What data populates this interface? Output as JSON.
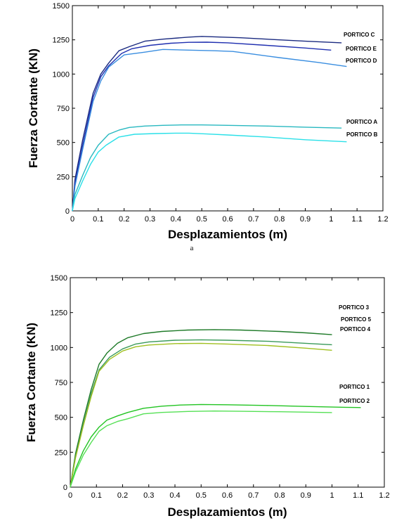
{
  "chart_data": [
    {
      "type": "line",
      "caption": "a",
      "xlabel": "Desplazamientos (m)",
      "ylabel": "Fuerza Cortante (KN)",
      "xlim": [
        0,
        1.2
      ],
      "ylim": [
        0,
        1500
      ],
      "xticks": [
        "0",
        "0.1",
        "0.2",
        "0.3",
        "0.4",
        "0.5",
        "0.6",
        "0.7",
        "0.8",
        "0.9",
        "1",
        "1.1",
        "1.2"
      ],
      "yticks": [
        "0",
        "250",
        "500",
        "750",
        "1000",
        "1250",
        "1500"
      ],
      "grid": false,
      "series": [
        {
          "name": "PORTICO C",
          "color": "#1a2a80",
          "x": [
            0,
            0.01,
            0.04,
            0.08,
            0.11,
            0.14,
            0.18,
            0.22,
            0.28,
            0.35,
            0.45,
            0.5,
            0.55,
            0.65,
            0.8,
            0.9,
            1.04
          ],
          "y": [
            0,
            230,
            520,
            860,
            1000,
            1080,
            1170,
            1200,
            1240,
            1255,
            1270,
            1275,
            1272,
            1265,
            1250,
            1240,
            1228
          ]
        },
        {
          "name": "PORTICO E",
          "color": "#1f2fb0",
          "x": [
            0,
            0.01,
            0.04,
            0.08,
            0.11,
            0.14,
            0.19,
            0.23,
            0.3,
            0.38,
            0.45,
            0.52,
            0.6,
            0.75,
            0.9,
            1.0
          ],
          "y": [
            0,
            200,
            480,
            830,
            980,
            1060,
            1150,
            1185,
            1210,
            1225,
            1232,
            1233,
            1228,
            1210,
            1190,
            1175
          ]
        },
        {
          "name": "PORTICO D",
          "color": "#3a8ee0",
          "x": [
            0,
            0.01,
            0.04,
            0.08,
            0.11,
            0.14,
            0.2,
            0.28,
            0.35,
            0.45,
            0.55,
            0.62,
            0.7,
            0.8,
            0.95,
            1.06
          ],
          "y": [
            0,
            180,
            450,
            800,
            950,
            1050,
            1140,
            1160,
            1180,
            1175,
            1170,
            1165,
            1145,
            1120,
            1085,
            1055
          ]
        },
        {
          "name": "PORTICO A",
          "color": "#28b8c0",
          "x": [
            0,
            0.01,
            0.04,
            0.07,
            0.1,
            0.14,
            0.18,
            0.22,
            0.28,
            0.35,
            0.42,
            0.5,
            0.6,
            0.75,
            0.9,
            1.04
          ],
          "y": [
            0,
            120,
            260,
            390,
            480,
            560,
            590,
            610,
            620,
            625,
            628,
            628,
            625,
            620,
            612,
            605
          ]
        },
        {
          "name": "PORTICO B",
          "color": "#2ae0e8",
          "x": [
            0,
            0.01,
            0.04,
            0.07,
            0.1,
            0.13,
            0.18,
            0.24,
            0.32,
            0.4,
            0.45,
            0.52,
            0.6,
            0.75,
            0.9,
            1.06
          ],
          "y": [
            0,
            90,
            220,
            340,
            430,
            480,
            540,
            560,
            565,
            568,
            568,
            562,
            555,
            540,
            520,
            505
          ]
        }
      ]
    },
    {
      "type": "line",
      "xlabel": "Desplazamientos (m)",
      "ylabel": "Fuerza Cortante (KN)",
      "xlim": [
        0,
        1.2
      ],
      "ylim": [
        0,
        1500
      ],
      "xticks": [
        "0",
        "0.1",
        "0.2",
        "0.3",
        "0.4",
        "0.5",
        "0.6",
        "0.7",
        "0.8",
        "0.9",
        "1",
        "1.1",
        "1.2"
      ],
      "yticks": [
        "0",
        "250",
        "500",
        "750",
        "1000",
        "1250",
        "1500"
      ],
      "grid": false,
      "series": [
        {
          "name": "PORTICO 3",
          "color": "#1e7a28",
          "x": [
            0,
            0.02,
            0.05,
            0.08,
            0.11,
            0.14,
            0.18,
            0.22,
            0.28,
            0.35,
            0.45,
            0.55,
            0.65,
            0.8,
            0.9,
            1.0
          ],
          "y": [
            0,
            240,
            480,
            700,
            880,
            960,
            1030,
            1070,
            1100,
            1115,
            1125,
            1128,
            1125,
            1115,
            1105,
            1092
          ]
        },
        {
          "name": "PORTICO 5",
          "color": "#3a9a5a",
          "x": [
            0,
            0.02,
            0.05,
            0.08,
            0.11,
            0.15,
            0.2,
            0.25,
            0.3,
            0.4,
            0.5,
            0.6,
            0.75,
            0.9,
            1.0
          ],
          "y": [
            0,
            220,
            450,
            670,
            840,
            930,
            990,
            1025,
            1040,
            1052,
            1055,
            1052,
            1045,
            1030,
            1020
          ]
        },
        {
          "name": "PORTICO 4",
          "color": "#a0c020",
          "x": [
            0,
            0.02,
            0.05,
            0.08,
            0.11,
            0.15,
            0.2,
            0.25,
            0.3,
            0.4,
            0.5,
            0.6,
            0.75,
            0.9,
            1.0
          ],
          "y": [
            0,
            210,
            440,
            650,
            830,
            915,
            975,
            1005,
            1018,
            1028,
            1030,
            1025,
            1015,
            995,
            980
          ]
        },
        {
          "name": "PORTICO 1",
          "color": "#22c422",
          "x": [
            0,
            0.02,
            0.05,
            0.08,
            0.11,
            0.14,
            0.18,
            0.22,
            0.28,
            0.35,
            0.42,
            0.5,
            0.6,
            0.75,
            0.9,
            1.05,
            1.11
          ],
          "y": [
            0,
            130,
            260,
            360,
            430,
            480,
            510,
            535,
            565,
            580,
            588,
            592,
            590,
            585,
            578,
            572,
            570
          ]
        },
        {
          "name": "PORTICO 2",
          "color": "#55e055",
          "x": [
            0,
            0.02,
            0.05,
            0.08,
            0.11,
            0.14,
            0.18,
            0.22,
            0.28,
            0.35,
            0.45,
            0.55,
            0.65,
            0.8,
            0.9,
            1.0
          ],
          "y": [
            0,
            110,
            230,
            320,
            400,
            440,
            470,
            490,
            525,
            535,
            542,
            545,
            543,
            540,
            537,
            534
          ]
        }
      ]
    }
  ]
}
